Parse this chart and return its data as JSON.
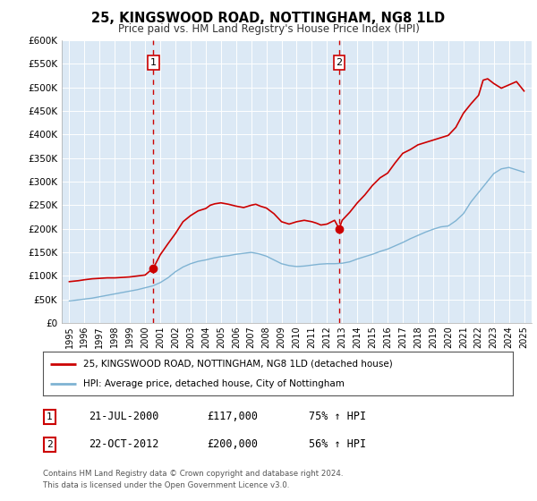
{
  "title": "25, KINGSWOOD ROAD, NOTTINGHAM, NG8 1LD",
  "subtitle": "Price paid vs. HM Land Registry's House Price Index (HPI)",
  "legend_line1": "25, KINGSWOOD ROAD, NOTTINGHAM, NG8 1LD (detached house)",
  "legend_line2": "HPI: Average price, detached house, City of Nottingham",
  "transaction1_date": "21-JUL-2000",
  "transaction1_price": "£117,000",
  "transaction1_hpi": "75% ↑ HPI",
  "transaction1_year": 2000.55,
  "transaction1_value": 117000,
  "transaction2_date": "22-OCT-2012",
  "transaction2_price": "£200,000",
  "transaction2_hpi": "56% ↑ HPI",
  "transaction2_year": 2012.8,
  "transaction2_value": 200000,
  "footnote1": "Contains HM Land Registry data © Crown copyright and database right 2024.",
  "footnote2": "This data is licensed under the Open Government Licence v3.0.",
  "red_line_color": "#cc0000",
  "blue_line_color": "#7fb3d3",
  "plot_bg": "#dce9f5",
  "ylim_min": 0,
  "ylim_max": 600000,
  "xlim_min": 1994.5,
  "xlim_max": 2025.5,
  "yticks": [
    0,
    50000,
    100000,
    150000,
    200000,
    250000,
    300000,
    350000,
    400000,
    450000,
    500000,
    550000,
    600000
  ],
  "ytick_labels": [
    "£0",
    "£50K",
    "£100K",
    "£150K",
    "£200K",
    "£250K",
    "£300K",
    "£350K",
    "£400K",
    "£450K",
    "£500K",
    "£550K",
    "£600K"
  ],
  "xticks": [
    1995,
    1996,
    1997,
    1998,
    1999,
    2000,
    2001,
    2002,
    2003,
    2004,
    2005,
    2006,
    2007,
    2008,
    2009,
    2010,
    2011,
    2012,
    2013,
    2014,
    2015,
    2016,
    2017,
    2018,
    2019,
    2020,
    2021,
    2022,
    2023,
    2024,
    2025
  ],
  "red_x": [
    1995.0,
    1995.3,
    1995.6,
    1996.0,
    1996.5,
    1997.0,
    1997.5,
    1998.0,
    1998.5,
    1999.0,
    1999.5,
    2000.0,
    2000.55,
    2001.0,
    2001.5,
    2002.0,
    2002.5,
    2003.0,
    2003.5,
    2004.0,
    2004.3,
    2004.6,
    2005.0,
    2005.5,
    2006.0,
    2006.5,
    2007.0,
    2007.3,
    2007.6,
    2008.0,
    2008.5,
    2009.0,
    2009.5,
    2010.0,
    2010.5,
    2011.0,
    2011.3,
    2011.6,
    2012.0,
    2012.5,
    2012.8,
    2013.0,
    2013.5,
    2014.0,
    2014.5,
    2015.0,
    2015.5,
    2016.0,
    2016.5,
    2017.0,
    2017.5,
    2018.0,
    2018.5,
    2019.0,
    2019.5,
    2020.0,
    2020.5,
    2021.0,
    2021.5,
    2022.0,
    2022.3,
    2022.6,
    2023.0,
    2023.5,
    2024.0,
    2024.5,
    2025.0
  ],
  "red_y": [
    88000,
    89000,
    90000,
    92000,
    94000,
    95000,
    96000,
    96000,
    97000,
    98000,
    100000,
    102000,
    117000,
    145000,
    168000,
    190000,
    215000,
    228000,
    238000,
    243000,
    250000,
    253000,
    255000,
    252000,
    248000,
    245000,
    250000,
    252000,
    248000,
    244000,
    232000,
    215000,
    210000,
    215000,
    218000,
    215000,
    212000,
    208000,
    210000,
    218000,
    200000,
    218000,
    235000,
    255000,
    272000,
    292000,
    308000,
    318000,
    340000,
    360000,
    368000,
    378000,
    383000,
    388000,
    393000,
    398000,
    415000,
    445000,
    465000,
    483000,
    515000,
    518000,
    508000,
    498000,
    505000,
    512000,
    492000
  ],
  "blue_x": [
    1995.0,
    1995.5,
    1996.0,
    1996.5,
    1997.0,
    1997.5,
    1998.0,
    1998.5,
    1999.0,
    1999.5,
    2000.0,
    2000.5,
    2001.0,
    2001.5,
    2002.0,
    2002.5,
    2003.0,
    2003.5,
    2004.0,
    2004.5,
    2005.0,
    2005.5,
    2006.0,
    2006.5,
    2007.0,
    2007.5,
    2008.0,
    2008.5,
    2009.0,
    2009.5,
    2010.0,
    2010.5,
    2011.0,
    2011.5,
    2012.0,
    2012.5,
    2013.0,
    2013.5,
    2014.0,
    2014.5,
    2015.0,
    2015.5,
    2016.0,
    2016.5,
    2017.0,
    2017.5,
    2018.0,
    2018.5,
    2019.0,
    2019.5,
    2020.0,
    2020.5,
    2021.0,
    2021.5,
    2022.0,
    2022.5,
    2023.0,
    2023.5,
    2024.0,
    2024.5,
    2025.0
  ],
  "blue_y": [
    47000,
    49000,
    51000,
    53000,
    56000,
    59000,
    62000,
    65000,
    68000,
    71000,
    75000,
    79000,
    86000,
    96000,
    109000,
    119000,
    126000,
    131000,
    134000,
    138000,
    141000,
    143000,
    146000,
    148000,
    150000,
    147000,
    142000,
    134000,
    126000,
    122000,
    120000,
    121000,
    123000,
    125000,
    126000,
    126000,
    127000,
    130000,
    136000,
    141000,
    146000,
    152000,
    157000,
    164000,
    171000,
    179000,
    186000,
    193000,
    199000,
    204000,
    206000,
    217000,
    232000,
    257000,
    277000,
    297000,
    317000,
    327000,
    330000,
    325000,
    320000
  ]
}
